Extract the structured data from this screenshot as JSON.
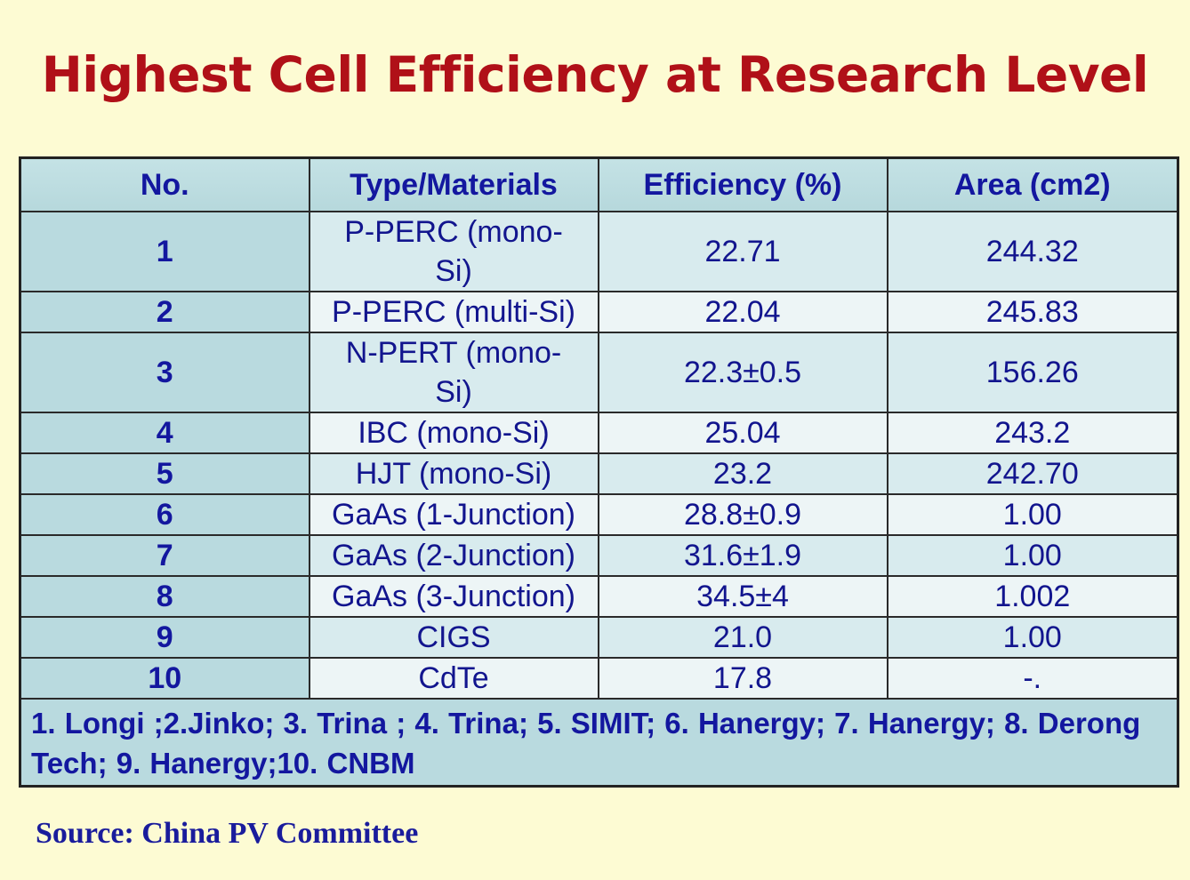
{
  "title": "Highest Cell Efficiency at Research Level",
  "table": {
    "headers": [
      "No.",
      "Type/Materials",
      "Efficiency (%)",
      "Area (cm2)"
    ],
    "rows": [
      {
        "no": "1",
        "type": "P-PERC (mono-Si)",
        "efficiency": "22.71",
        "area": "244.32"
      },
      {
        "no": "2",
        "type": "P-PERC (multi-Si)",
        "efficiency": "22.04",
        "area": "245.83"
      },
      {
        "no": "3",
        "type": "N-PERT (mono-Si)",
        "efficiency": "22.3±0.5",
        "area": "156.26"
      },
      {
        "no": "4",
        "type": "IBC (mono-Si)",
        "efficiency": "25.04",
        "area": "243.2"
      },
      {
        "no": "5",
        "type": "HJT (mono-Si)",
        "efficiency": "23.2",
        "area": "242.70"
      },
      {
        "no": "6",
        "type": "GaAs (1-Junction)",
        "efficiency": "28.8±0.9",
        "area": "1.00"
      },
      {
        "no": "7",
        "type": "GaAs (2-Junction)",
        "efficiency": "31.6±1.9",
        "area": "1.00"
      },
      {
        "no": "8",
        "type": "GaAs (3-Junction)",
        "efficiency": "34.5±4",
        "area": "1.002"
      },
      {
        "no": "9",
        "type": "CIGS",
        "efficiency": "21.0",
        "area": "1.00"
      },
      {
        "no": "10",
        "type": "CdTe",
        "efficiency": "17.8",
        "area": "-."
      }
    ],
    "footer": "1. Longi ;2.Jinko; 3. Trina ; 4. Trina; 5. SIMIT;  6. Hanergy; 7. Hanergy; 8. Derong Tech; 9. Hanergy;10. CNBM"
  },
  "source": "Source: China PV Committee"
}
